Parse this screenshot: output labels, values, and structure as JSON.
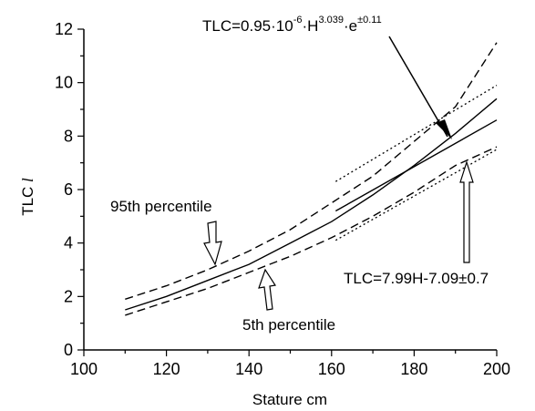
{
  "chart_data": {
    "type": "line",
    "xlabel": "Stature  cm",
    "ylabel_prefix": "TLC",
    "ylabel_unit": "l",
    "xlim": [
      100,
      200
    ],
    "ylim": [
      0,
      12
    ],
    "x_ticks": [
      "100",
      "120",
      "140",
      "160",
      "180",
      "200"
    ],
    "y_ticks": [
      "0",
      "2",
      "4",
      "6",
      "8",
      "10",
      "12"
    ],
    "grid": false,
    "series": [
      {
        "name": "TLC=0.95·10-6·H3.039·e±0.11",
        "style": "solid",
        "x": [
          110,
          120,
          130,
          140,
          150,
          160,
          170,
          180,
          190,
          200
        ],
        "y": [
          1.5,
          2.0,
          2.6,
          3.2,
          4.0,
          4.8,
          5.8,
          6.9,
          8.1,
          9.4
        ]
      },
      {
        "name": "95th percentile",
        "style": "dashed",
        "x": [
          110,
          120,
          130,
          140,
          150,
          160,
          170,
          180,
          190,
          200
        ],
        "y": [
          1.9,
          2.4,
          3.0,
          3.7,
          4.5,
          5.5,
          6.5,
          7.8,
          9.1,
          11.5
        ]
      },
      {
        "name": "5th percentile",
        "style": "dashed",
        "x": [
          110,
          120,
          130,
          140,
          150,
          160,
          170,
          180,
          190,
          200
        ],
        "y": [
          1.3,
          1.8,
          2.3,
          2.9,
          3.5,
          4.2,
          5.0,
          5.9,
          6.9,
          7.6
        ]
      },
      {
        "name": "TLC=7.99H-7.09±0.7",
        "style": "solid",
        "x": [
          161,
          200
        ],
        "y": [
          5.2,
          8.6
        ]
      },
      {
        "name": "TLC=7.99H-7.09±0.7 upper",
        "style": "dotted",
        "x": [
          161,
          200
        ],
        "y": [
          6.3,
          9.9
        ]
      },
      {
        "name": "TLC=7.99H-7.09±0.7 lower",
        "style": "dotted",
        "x": [
          161,
          200
        ],
        "y": [
          4.1,
          7.5
        ]
      }
    ],
    "annotations": {
      "power_eq": {
        "base": "TLC=0.95·10",
        "exp1": "-6",
        "mid": "·H",
        "exp2": "3.039",
        "end": "·e",
        "exp3": "±0.11"
      },
      "linear_eq": "TLC=7.99H-7.09±0.7",
      "p95": "95th percentile",
      "p5": "5th percentile"
    }
  }
}
